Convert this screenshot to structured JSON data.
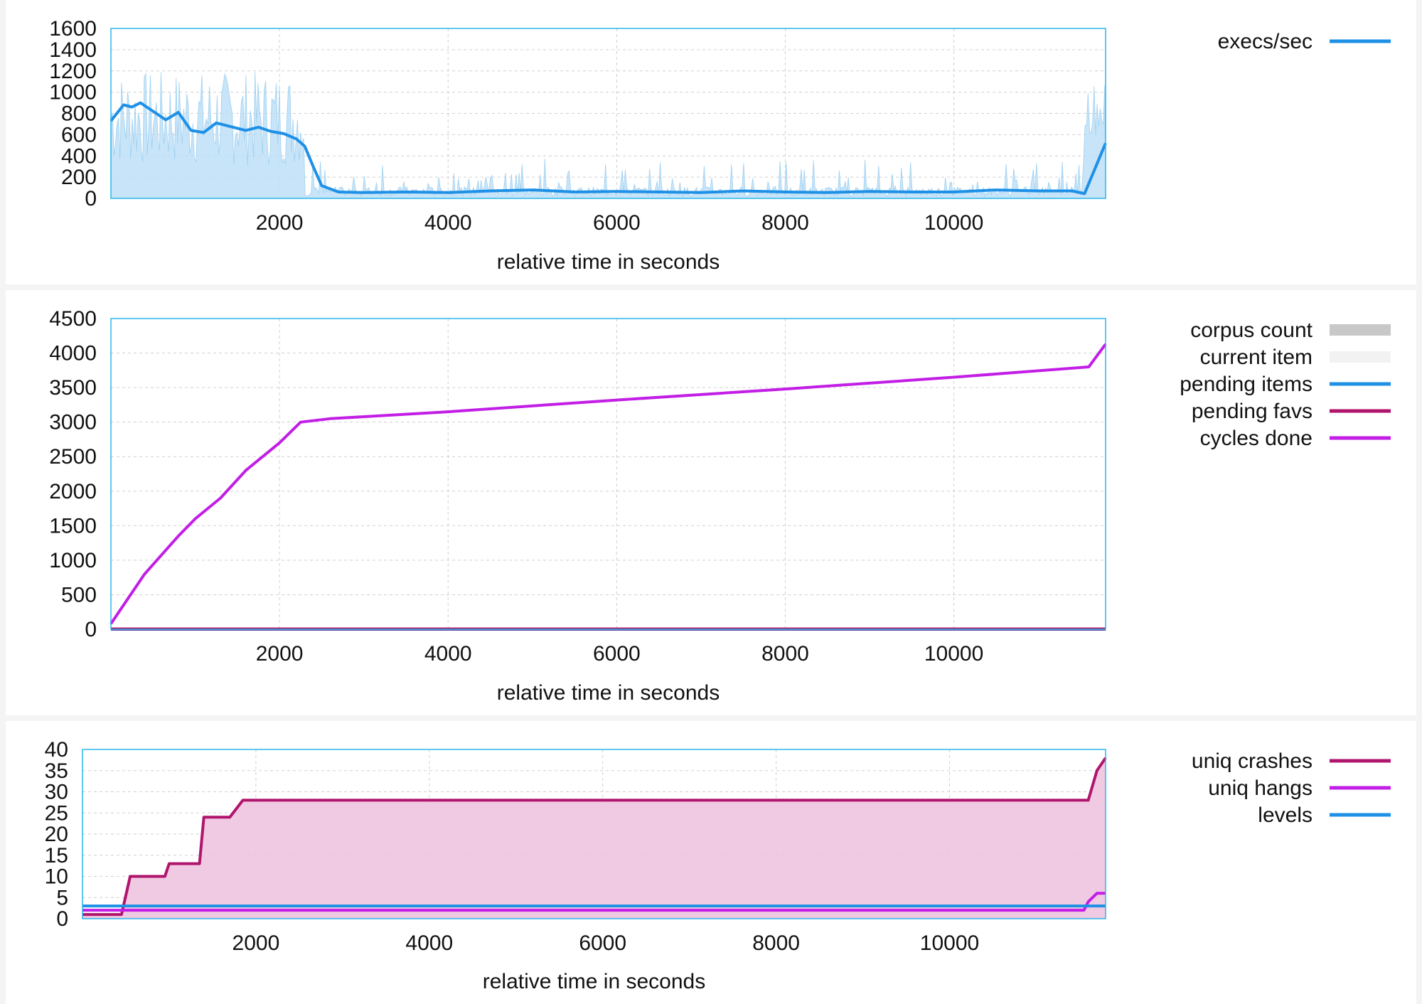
{
  "charts": [
    {
      "type": "line",
      "xlabel": "relative time in seconds",
      "x_ticks": [
        2000,
        4000,
        6000,
        8000,
        10000
      ],
      "y_ticks": [
        0,
        200,
        400,
        600,
        800,
        1000,
        1200,
        1400,
        1600
      ],
      "xlim": [
        0,
        11800
      ],
      "ylim": [
        0,
        1600
      ],
      "legend": [
        "execs/sec"
      ],
      "colors": {
        "line": "#1e90e6",
        "fill": "#bfe0f7",
        "frame": "#29b6e8"
      }
    },
    {
      "type": "line",
      "xlabel": "relative time in seconds",
      "x_ticks": [
        2000,
        4000,
        6000,
        8000,
        10000
      ],
      "y_ticks": [
        0,
        500,
        1000,
        1500,
        2000,
        2500,
        3000,
        3500,
        4000,
        4500
      ],
      "xlim": [
        0,
        11800
      ],
      "ylim": [
        0,
        4500
      ],
      "legend": [
        "corpus count",
        "current item",
        "pending items",
        "pending favs",
        "cycles done"
      ],
      "legend_colors": [
        "#c8c8c8",
        "#f2f2f2",
        "#1e90e6",
        "#b0156e",
        "#c21ee6"
      ]
    },
    {
      "type": "area",
      "xlabel": "relative time in seconds",
      "x_ticks": [
        2000,
        4000,
        6000,
        8000,
        10000
      ],
      "y_ticks": [
        0,
        5,
        10,
        15,
        20,
        25,
        30,
        35,
        40
      ],
      "xlim": [
        0,
        11800
      ],
      "ylim": [
        0,
        40
      ],
      "legend": [
        "uniq crashes",
        "uniq hangs",
        "levels"
      ],
      "legend_colors": [
        "#b0156e",
        "#c21ee6",
        "#1e90e6"
      ]
    }
  ],
  "chart_data": [
    {
      "type": "line",
      "xlabel": "relative time in seconds",
      "ylim": [
        0,
        1600
      ],
      "series": [
        {
          "name": "execs/sec",
          "x": [
            0,
            150,
            250,
            350,
            500,
            650,
            800,
            950,
            1100,
            1250,
            1400,
            1600,
            1750,
            1900,
            2050,
            2200,
            2300,
            2400,
            2500,
            2700,
            3000,
            3500,
            4000,
            4500,
            5000,
            5500,
            6000,
            6500,
            7000,
            7500,
            8000,
            8500,
            9000,
            9500,
            10000,
            10500,
            11000,
            11400,
            11550,
            11800
          ],
          "y": [
            730,
            880,
            860,
            900,
            820,
            740,
            810,
            640,
            620,
            710,
            680,
            640,
            670,
            630,
            610,
            560,
            490,
            300,
            120,
            60,
            55,
            60,
            55,
            70,
            80,
            60,
            65,
            60,
            55,
            70,
            60,
            55,
            65,
            60,
            60,
            80,
            70,
            70,
            45,
            520
          ]
        }
      ]
    },
    {
      "type": "line",
      "xlabel": "relative time in seconds",
      "ylim": [
        0,
        4500
      ],
      "series": [
        {
          "name": "cycles done",
          "x": [
            0,
            400,
            800,
            1000,
            1300,
            1600,
            2000,
            2250,
            2600,
            4000,
            6000,
            8000,
            10000,
            11600,
            11800
          ],
          "y": [
            80,
            800,
            1350,
            1600,
            1900,
            2300,
            2700,
            3000,
            3050,
            3150,
            3320,
            3480,
            3650,
            3800,
            4130
          ]
        },
        {
          "name": "pending favs",
          "x": [
            0,
            11800
          ],
          "y": [
            5,
            5
          ]
        },
        {
          "name": "pending items",
          "x": [
            0,
            11800
          ],
          "y": [
            0,
            0
          ]
        }
      ]
    },
    {
      "type": "area",
      "xlabel": "relative time in seconds",
      "ylim": [
        0,
        40
      ],
      "series": [
        {
          "name": "uniq crashes",
          "x": [
            0,
            450,
            550,
            620,
            950,
            1000,
            1350,
            1400,
            1700,
            1850,
            11550,
            11600,
            11700,
            11800
          ],
          "y": [
            1,
            1,
            10,
            10,
            10,
            13,
            13,
            24,
            24,
            28,
            28,
            28,
            35,
            38
          ]
        },
        {
          "name": "uniq hangs",
          "x": [
            0,
            11550,
            11600,
            11700,
            11800
          ],
          "y": [
            2,
            2,
            4,
            6,
            6
          ]
        },
        {
          "name": "levels",
          "x": [
            0,
            11800
          ],
          "y": [
            3,
            3
          ]
        }
      ]
    }
  ]
}
